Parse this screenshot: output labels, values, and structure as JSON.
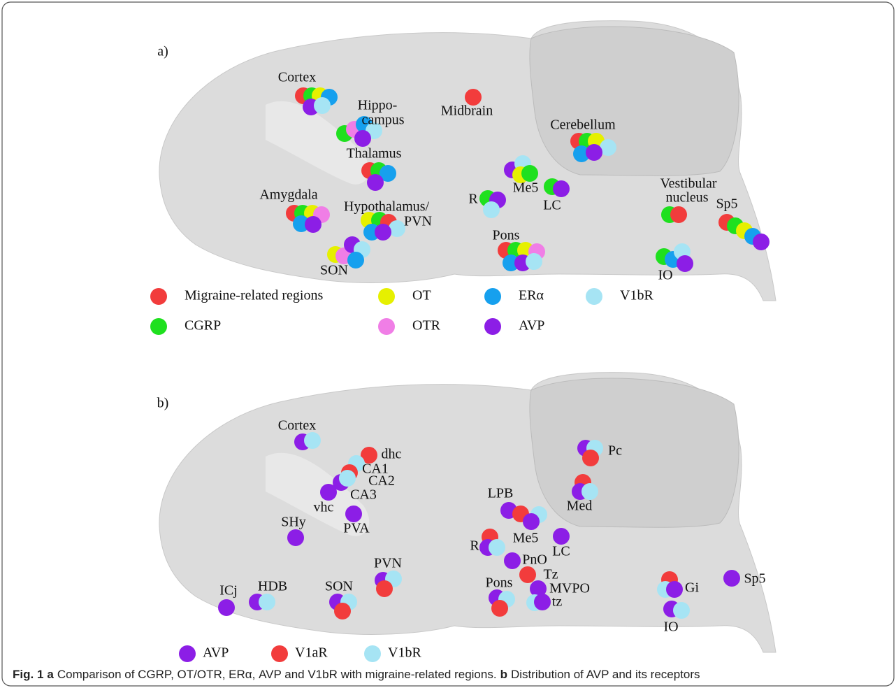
{
  "panels": [
    {
      "label": "a)",
      "regions": [
        "Cortex",
        "Hippo-",
        "campus",
        "Midbrain",
        "Thalamus",
        "Cerebellum",
        "Me5",
        "LC",
        "R",
        "Amygdala",
        "Hypothalamus/",
        "PVN",
        "Vestibular",
        "nucleus",
        "Sp5",
        "SON",
        "Pons",
        "IO"
      ],
      "legend": [
        "Migraine-related regions",
        "OT",
        "ERα",
        "V1bR",
        "CGRP",
        "OTR",
        "AVP"
      ]
    },
    {
      "label": "b)",
      "regions": [
        "Cortex",
        "dhc",
        "CA1",
        "CA2",
        "CA3",
        "vhc",
        "PVA",
        "SHy",
        "Pc",
        "Med",
        "LPB",
        "Me5",
        "LC",
        "R",
        "PnO",
        "Tz",
        "MVPO",
        "tz",
        "Pons",
        "PVN",
        "SON",
        "HDB",
        "ICj",
        "Gi",
        "Sp5",
        "IO"
      ],
      "legend": [
        "AVP",
        "V1aR",
        "V1bR"
      ]
    }
  ],
  "caption": [
    {
      "text": "Fig. 1",
      "bold": true
    },
    {
      "text": "a",
      "bold": true
    },
    {
      "text": "Comparison of CGRP, OT/OTR, ERα, AVP and V1bR with migraine-related regions.",
      "bold": false
    },
    {
      "text": "b",
      "bold": true
    },
    {
      "text": "Distribution of AVP and its receptors",
      "bold": false
    }
  ]
}
